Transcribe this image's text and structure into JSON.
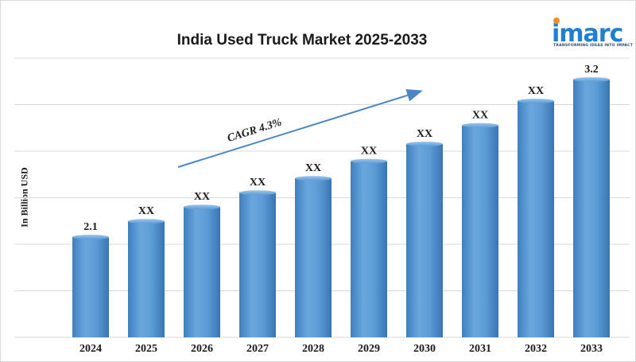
{
  "chart_data": {
    "type": "bar",
    "title": "India Used Truck Market 2025-2033",
    "ylabel": "In Billion USD",
    "xlabel": "",
    "categories": [
      "2024",
      "2025",
      "2026",
      "2027",
      "2028",
      "2029",
      "2030",
      "2031",
      "2032",
      "2033"
    ],
    "values": [
      2.1,
      2.21,
      2.31,
      2.41,
      2.51,
      2.63,
      2.75,
      2.88,
      3.05,
      3.2
    ],
    "data_labels": [
      "2.1",
      "XX",
      "XX",
      "XX",
      "XX",
      "XX",
      "XX",
      "XX",
      "XX",
      "3.2"
    ],
    "ylim": [
      1.4,
      3.35
    ],
    "grid": true,
    "bar_color": "#5b9bd5",
    "annotation": {
      "text": "CAGR 4.3%",
      "type": "arrow",
      "from_category": "2026",
      "to_category": "2030"
    }
  },
  "logo": {
    "word": "imarc",
    "tagline": "TRANSFORMING IDEAS INTO IMPACT",
    "color": "#1f7fd1",
    "dot_color": "#f28c28"
  }
}
